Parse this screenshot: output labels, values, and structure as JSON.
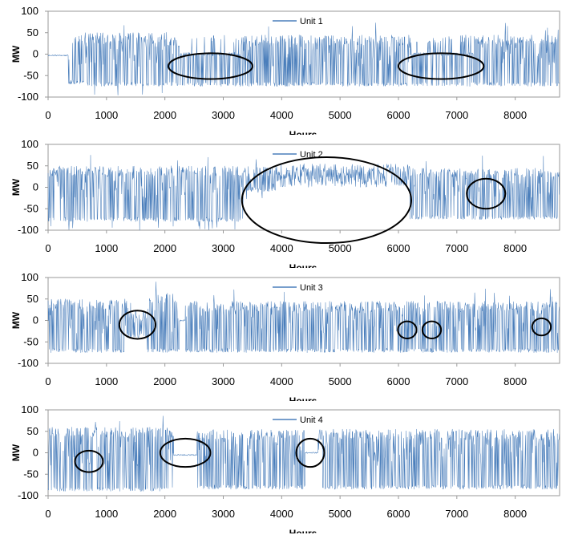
{
  "chart_data": [
    {
      "type": "line",
      "series": [
        {
          "name": "Unit 1",
          "color": "#4a7ebb"
        }
      ],
      "xlabel": "Hours",
      "ylabel": "MW",
      "xlim": [
        0,
        8760
      ],
      "ylim": [
        -100,
        100
      ],
      "xticks": [
        "0",
        "1000",
        "2000",
        "3000",
        "4000",
        "5000",
        "6000",
        "7000",
        "8000"
      ],
      "yticks": [
        "100",
        "50",
        "0",
        "-50",
        "-100"
      ],
      "legend": "top-center",
      "grid": false,
      "annotations": [
        {
          "shape": "ellipse",
          "x_center": 2780,
          "y_center": -28,
          "x_half_width": 720,
          "y_half_height": 30
        },
        {
          "shape": "ellipse",
          "x_center": 6730,
          "y_center": -28,
          "x_half_width": 730,
          "y_half_height": 30
        }
      ],
      "segments": [
        {
          "x": [
            0,
            350
          ],
          "mode": "flat",
          "level": -3
        },
        {
          "x": [
            350,
            650
          ],
          "mode": "bipolar",
          "hi": 50,
          "lo": -70
        },
        {
          "x": [
            650,
            2000
          ],
          "mode": "bipolar",
          "hi": 50,
          "lo": -75,
          "outlier_min": -100
        },
        {
          "x": [
            2000,
            2250
          ],
          "mode": "bipolar",
          "hi": 40,
          "lo": -75
        },
        {
          "x": [
            2250,
            3300
          ],
          "mode": "sparse",
          "hi": 45,
          "lo": -75
        },
        {
          "x": [
            3300,
            6200
          ],
          "mode": "bipolar",
          "hi": 45,
          "lo": -75
        },
        {
          "x": [
            6200,
            7300
          ],
          "mode": "sparse",
          "hi": 45,
          "lo": -75
        },
        {
          "x": [
            7300,
            8760
          ],
          "mode": "bipolar",
          "hi": 45,
          "lo": -75
        }
      ]
    },
    {
      "type": "line",
      "series": [
        {
          "name": "Unit 2",
          "color": "#4a7ebb"
        }
      ],
      "xlabel": "Hours",
      "ylabel": "MW",
      "xlim": [
        0,
        8760
      ],
      "ylim": [
        -100,
        100
      ],
      "xticks": [
        "0",
        "1000",
        "2000",
        "3000",
        "4000",
        "5000",
        "6000",
        "7000",
        "8000"
      ],
      "yticks": [
        "100",
        "50",
        "0",
        "-50",
        "-100"
      ],
      "legend": "top-center",
      "grid": false,
      "annotations": [
        {
          "shape": "ellipse",
          "x_center": 4770,
          "y_center": -30,
          "x_half_width": 1450,
          "y_half_height": 100
        },
        {
          "shape": "ellipse",
          "x_center": 7500,
          "y_center": -15,
          "x_half_width": 330,
          "y_half_height": 35
        }
      ],
      "segments": [
        {
          "x": [
            0,
            3400
          ],
          "mode": "bipolar",
          "hi": 50,
          "lo": -80,
          "outlier_min": -100
        },
        {
          "x": [
            3400,
            3900
          ],
          "mode": "bipolar",
          "hi": 50,
          "lo": -10
        },
        {
          "x": [
            3900,
            6200
          ],
          "mode": "positive",
          "hi": 45,
          "lo": 0
        },
        {
          "x": [
            6200,
            8760
          ],
          "mode": "bipolar",
          "hi": 45,
          "lo": -75
        }
      ]
    },
    {
      "type": "line",
      "series": [
        {
          "name": "Unit 3",
          "color": "#4a7ebb"
        }
      ],
      "xlabel": "Hours",
      "ylabel": "MW",
      "xlim": [
        0,
        8760
      ],
      "ylim": [
        -100,
        100
      ],
      "xticks": [
        "0",
        "1000",
        "2000",
        "3000",
        "4000",
        "5000",
        "6000",
        "7000",
        "8000"
      ],
      "yticks": [
        "100",
        "50",
        "0",
        "-50",
        "-100"
      ],
      "legend": "top-center",
      "grid": false,
      "annotations": [
        {
          "shape": "ellipse",
          "x_center": 1530,
          "y_center": -10,
          "x_half_width": 310,
          "y_half_height": 33
        },
        {
          "shape": "ellipse",
          "x_center": 6150,
          "y_center": -22,
          "x_half_width": 160,
          "y_half_height": 20
        },
        {
          "shape": "ellipse",
          "x_center": 6570,
          "y_center": -22,
          "x_half_width": 160,
          "y_half_height": 20
        },
        {
          "shape": "ellipse",
          "x_center": 8450,
          "y_center": -15,
          "x_half_width": 160,
          "y_half_height": 20
        }
      ],
      "segments": [
        {
          "x": [
            0,
            1350
          ],
          "mode": "bipolar",
          "hi": 50,
          "lo": -75
        },
        {
          "x": [
            1350,
            1700
          ],
          "mode": "bipolar",
          "hi": 20,
          "lo": -40
        },
        {
          "x": [
            1700,
            2250
          ],
          "mode": "bipolar",
          "hi": 65,
          "lo": -75
        },
        {
          "x": [
            2250,
            2350
          ],
          "mode": "flat",
          "level": 0
        },
        {
          "x": [
            2350,
            8760
          ],
          "mode": "bipolar",
          "hi": 45,
          "lo": -75
        }
      ]
    },
    {
      "type": "line",
      "series": [
        {
          "name": "Unit 4",
          "color": "#4a7ebb"
        }
      ],
      "xlabel": "Hours",
      "ylabel": "MW",
      "xlim": [
        0,
        8760
      ],
      "ylim": [
        -100,
        100
      ],
      "xticks": [
        "0",
        "1000",
        "2000",
        "3000",
        "4000",
        "5000",
        "6000",
        "7000",
        "8000"
      ],
      "yticks": [
        "100",
        "50",
        "0",
        "-50",
        "-100"
      ],
      "legend": "top-center",
      "grid": false,
      "annotations": [
        {
          "shape": "ellipse",
          "x_center": 700,
          "y_center": -20,
          "x_half_width": 240,
          "y_half_height": 25
        },
        {
          "shape": "ellipse",
          "x_center": 2350,
          "y_center": 0,
          "x_half_width": 430,
          "y_half_height": 33
        },
        {
          "shape": "ellipse",
          "x_center": 4490,
          "y_center": 0,
          "x_half_width": 240,
          "y_half_height": 33
        }
      ],
      "segments": [
        {
          "x": [
            0,
            2150
          ],
          "mode": "bipolar",
          "hi": 60,
          "lo": -90
        },
        {
          "x": [
            2150,
            2550
          ],
          "mode": "flat",
          "level": -5
        },
        {
          "x": [
            2550,
            4400
          ],
          "mode": "bipolar",
          "hi": 55,
          "lo": -85
        },
        {
          "x": [
            4400,
            4620
          ],
          "mode": "flat",
          "level": 0
        },
        {
          "x": [
            4620,
            8760
          ],
          "mode": "bipolar",
          "hi": 55,
          "lo": -85
        }
      ]
    }
  ]
}
